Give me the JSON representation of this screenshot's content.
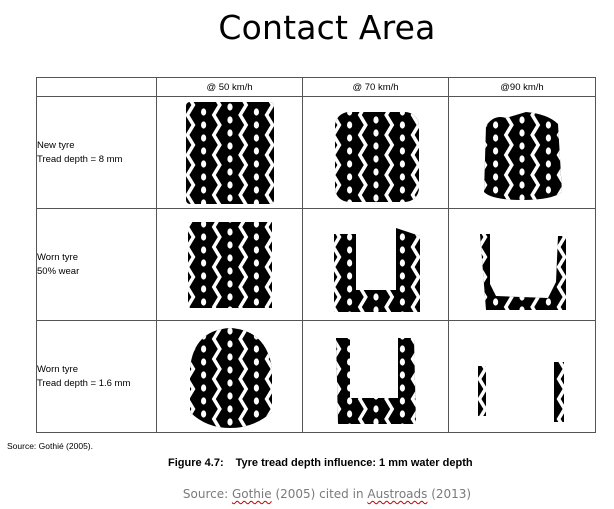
{
  "slide": {
    "title": "Contact Area"
  },
  "figure": {
    "columns": [
      "@ 50 km/h",
      "@ 70 km/h",
      "@90 km/h"
    ],
    "rows": [
      {
        "label_lines": [
          "New tyre",
          "Tread depth = 8 mm"
        ]
      },
      {
        "label_lines": [
          "Worn tyre",
          "50% wear"
        ]
      },
      {
        "label_lines": [
          "Worn tyre",
          "Tread depth = 1.6 mm"
        ]
      }
    ],
    "source_note": "Source: Gothié (2005).",
    "caption_number": "Figure 4.7:",
    "caption_text": "Tyre tread depth influence: 1 mm water depth"
  },
  "citation": {
    "prefix": "Source: ",
    "author": "Gothie",
    "mid": " (2005) cited in ",
    "publisher": "Austroads",
    "year": " (2013)"
  }
}
